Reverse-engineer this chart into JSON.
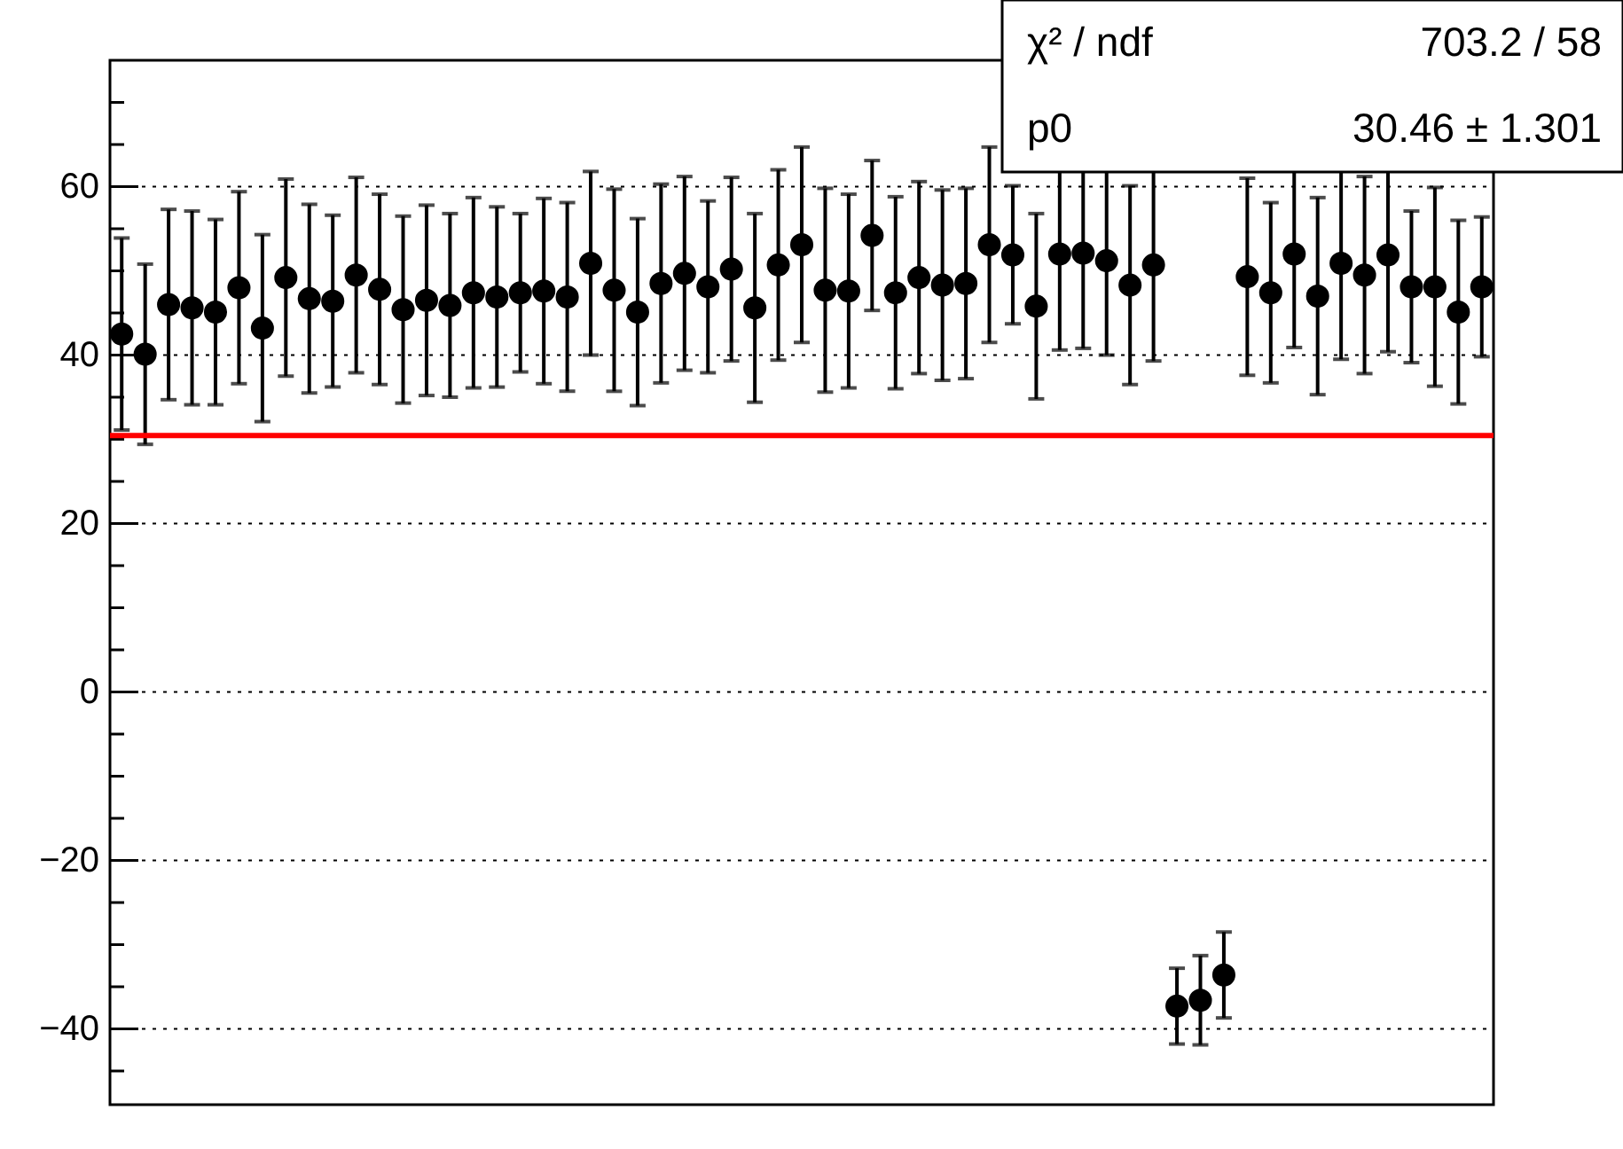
{
  "chart_data": {
    "type": "scatter",
    "categories": [
      null,
      null,
      null,
      null,
      null,
      null,
      null,
      null,
      null,
      null,
      null,
      null,
      null,
      null,
      null,
      null,
      null,
      null,
      null,
      null,
      null,
      null,
      null,
      null,
      null,
      null,
      null,
      null,
      null,
      null,
      null,
      null,
      null,
      null,
      null,
      null,
      null,
      null,
      null,
      null,
      null,
      null,
      null,
      null,
      null,
      null,
      null,
      null,
      null,
      null,
      null,
      null,
      null,
      null,
      null,
      null,
      null,
      null,
      null
    ],
    "series": [
      {
        "color": "#000000",
        "values": [
          42.5,
          40.1,
          46.0,
          45.6,
          45.1,
          48.0,
          43.2,
          49.2,
          46.7,
          46.4,
          49.5,
          47.8,
          45.4,
          46.5,
          45.9,
          47.4,
          46.9,
          47.4,
          47.6,
          46.9,
          50.9,
          47.7,
          45.1,
          48.5,
          49.7,
          48.1,
          50.2,
          45.6,
          50.7,
          53.1,
          47.7,
          47.6,
          54.2,
          47.4,
          49.2,
          48.3,
          48.5,
          53.1,
          51.9,
          45.8,
          52.0,
          52.1,
          51.2,
          48.3,
          50.7,
          -37.3,
          -36.6,
          -33.6,
          49.3,
          47.4,
          52.0,
          47.0,
          50.9,
          49.5,
          51.9,
          48.1,
          48.1,
          45.1,
          48.1
        ],
        "errors": [
          11.4,
          10.7,
          11.3,
          11.5,
          11.0,
          11.4,
          11.1,
          11.7,
          11.2,
          10.2,
          11.6,
          11.3,
          11.1,
          11.3,
          10.9,
          11.3,
          10.7,
          9.4,
          11.0,
          11.2,
          10.9,
          12.0,
          11.1,
          11.8,
          11.5,
          10.2,
          10.9,
          11.2,
          11.3,
          11.6,
          12.1,
          11.5,
          8.9,
          11.4,
          11.4,
          11.3,
          11.3,
          11.6,
          8.2,
          11.0,
          11.4,
          11.3,
          11.2,
          11.8,
          11.4,
          4.5,
          5.3,
          5.1,
          11.7,
          10.7,
          11.1,
          11.7,
          11.4,
          11.7,
          11.5,
          9.0,
          11.8,
          10.9,
          8.3
        ]
      }
    ],
    "ref_lines": [
      {
        "axis": "y",
        "value": 30.46,
        "color": "#ff0000"
      }
    ],
    "annotations": [
      "χ² / ndf",
      "703.2 / 58",
      "p0",
      "30.46 ± 1.301"
    ],
    "ylim": [
      -49,
      75
    ],
    "yticks": [
      {
        "value": -45,
        "label": null
      },
      {
        "value": -40,
        "label": "−40"
      },
      {
        "value": -35,
        "label": null
      },
      {
        "value": -30,
        "label": null
      },
      {
        "value": -25,
        "label": null
      },
      {
        "value": -20,
        "label": "−20"
      },
      {
        "value": -15,
        "label": null
      },
      {
        "value": -10,
        "label": null
      },
      {
        "value": -5,
        "label": null
      },
      0,
      {
        "value": 5,
        "label": null
      },
      {
        "value": 10,
        "label": null
      },
      {
        "value": 15,
        "label": null
      },
      20,
      {
        "value": 25,
        "label": null
      },
      {
        "value": 30,
        "label": null
      },
      {
        "value": 35,
        "label": null
      },
      40,
      {
        "value": 45,
        "label": null
      },
      {
        "value": 50,
        "label": null
      },
      {
        "value": 55,
        "label": null
      },
      60,
      {
        "value": 65,
        "label": null
      },
      {
        "value": 70,
        "label": null
      }
    ],
    "grid": "y",
    "marker": "circle",
    "tick_labels": "y"
  }
}
